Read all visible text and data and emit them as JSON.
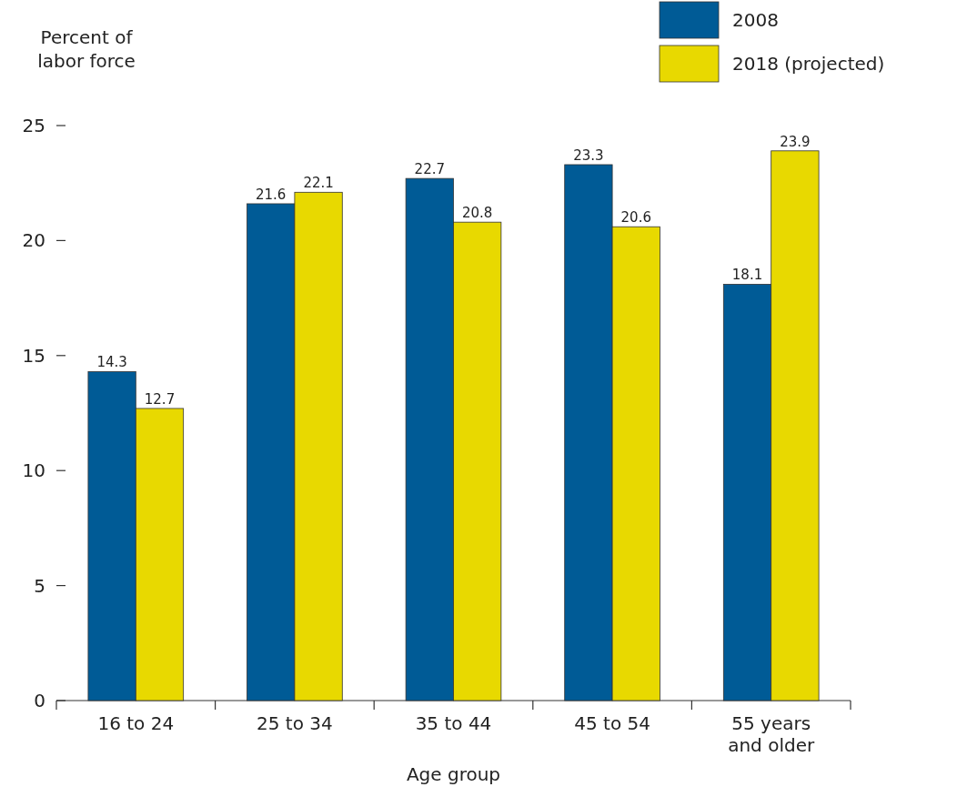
{
  "chart_data": {
    "type": "bar",
    "ylabel": "Percent of labor force",
    "xlabel": "Age group",
    "categories": [
      "16 to 24",
      "25 to 34",
      "35 to 44",
      "45 to 54",
      "55 years and older"
    ],
    "series": [
      {
        "name": "2008",
        "color": "#005b96",
        "values": [
          14.3,
          21.6,
          22.7,
          23.3,
          18.1
        ]
      },
      {
        "name": "2018 (projected)",
        "color": "#e8d900",
        "values": [
          12.7,
          22.1,
          20.8,
          20.6,
          23.9
        ]
      }
    ],
    "ylim": [
      0,
      25
    ],
    "yticks": [
      0,
      5,
      10,
      15,
      20,
      25
    ],
    "data_labels": true,
    "legend": "top right",
    "grid": false
  }
}
